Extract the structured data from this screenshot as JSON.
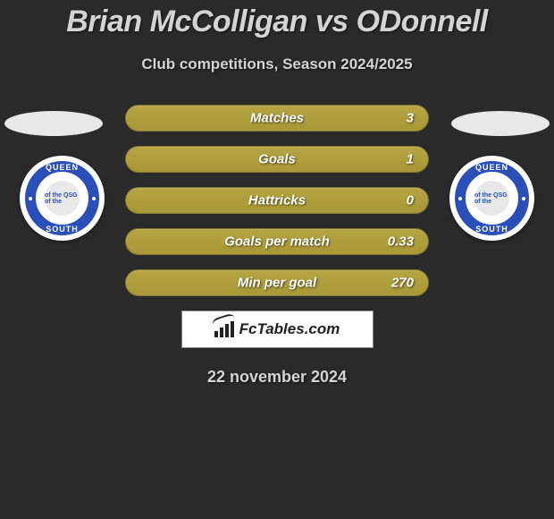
{
  "title": "Brian McColligan vs ODonnell",
  "subtitle": "Club competitions, Season 2024/2025",
  "club_badge": {
    "top_text": "QUEEN",
    "bottom_text": "SOUTH",
    "inner_text": "of the  QSG  of the",
    "ring_color": "#2a4fb8"
  },
  "stats": [
    {
      "label": "Matches",
      "value": "3"
    },
    {
      "label": "Goals",
      "value": "1"
    },
    {
      "label": "Hattricks",
      "value": "0"
    },
    {
      "label": "Goals per match",
      "value": "0.33"
    },
    {
      "label": "Min per goal",
      "value": "270"
    }
  ],
  "stat_bar": {
    "fill_color_top": "#b5a542",
    "fill_color_bottom": "#a89736",
    "label_color": "#ffffff",
    "font_style": "italic",
    "font_weight": 700
  },
  "brand": {
    "text": "FcTables.com",
    "bg_color": "#ffffff",
    "text_color": "#222222"
  },
  "date": "22 november 2024",
  "colors": {
    "page_bg": "#2a2a2a",
    "text": "#d4d4d4",
    "ellipse": "#e8e8e8"
  }
}
